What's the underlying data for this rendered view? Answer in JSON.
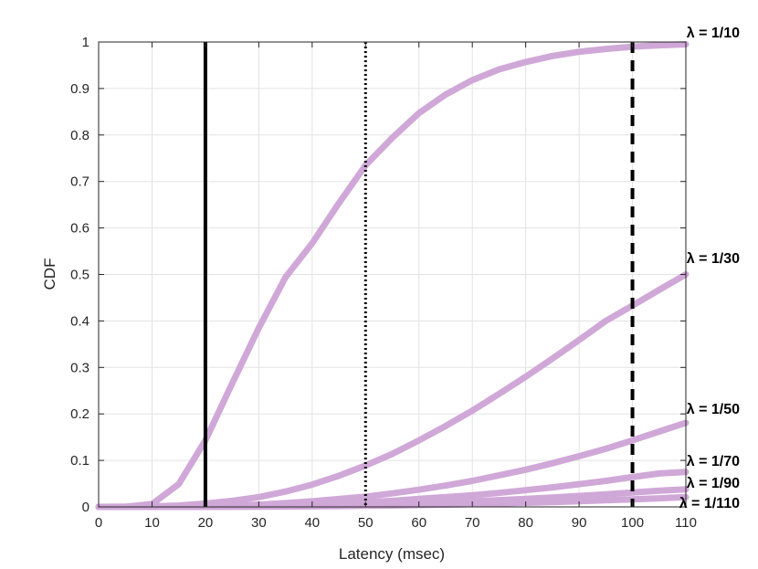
{
  "chart_data": {
    "type": "line",
    "xlabel": "Latency (msec)",
    "ylabel": "CDF",
    "xlim": [
      0,
      110
    ],
    "ylim": [
      0,
      1
    ],
    "grid": true,
    "x_ticks": [
      "0",
      "10",
      "20",
      "30",
      "40",
      "50",
      "60",
      "70",
      "80",
      "90",
      "100",
      "110"
    ],
    "y_ticks": [
      "0",
      "0.1",
      "0.2",
      "0.3",
      "0.4",
      "0.5",
      "0.6",
      "0.7",
      "0.8",
      "0.9",
      "1"
    ],
    "series_color": "#d0a8d8",
    "x": [
      0,
      5,
      10,
      15,
      20,
      25,
      30,
      35,
      40,
      45,
      50,
      55,
      60,
      65,
      70,
      75,
      80,
      85,
      90,
      95,
      100,
      105,
      110
    ],
    "series": [
      {
        "name": "λ = 1/10",
        "values": [
          0,
          0.0002,
          0.006,
          0.049,
          0.143,
          0.265,
          0.385,
          0.494,
          0.567,
          0.653,
          0.735,
          0.794,
          0.847,
          0.887,
          0.918,
          0.941,
          0.957,
          0.97,
          0.979,
          0.985,
          0.99,
          0.993,
          0.995
        ]
      },
      {
        "name": "λ = 1/30",
        "values": [
          0,
          0.0001,
          0.001,
          0.003,
          0.007,
          0.013,
          0.021,
          0.033,
          0.048,
          0.067,
          0.089,
          0.114,
          0.143,
          0.174,
          0.207,
          0.243,
          0.28,
          0.319,
          0.359,
          0.4,
          0.433,
          0.467,
          0.5
        ]
      },
      {
        "name": "λ = 1/50",
        "values": [
          0,
          0,
          0.0002,
          0.001,
          0.002,
          0.003,
          0.005,
          0.008,
          0.012,
          0.017,
          0.022,
          0.029,
          0.037,
          0.046,
          0.056,
          0.068,
          0.08,
          0.094,
          0.109,
          0.125,
          0.143,
          0.162,
          0.181
        ]
      },
      {
        "name": "λ = 1/70",
        "values": [
          0,
          0,
          0.0001,
          0.0003,
          0.0008,
          0.0015,
          0.0025,
          0.004,
          0.0055,
          0.0075,
          0.01,
          0.013,
          0.017,
          0.021,
          0.025,
          0.03,
          0.036,
          0.042,
          0.049,
          0.056,
          0.064,
          0.072,
          0.075
        ]
      },
      {
        "name": "λ = 1/90",
        "values": [
          0,
          0,
          0,
          0.0001,
          0.0003,
          0.0006,
          0.001,
          0.0016,
          0.0024,
          0.0034,
          0.0046,
          0.006,
          0.0078,
          0.0098,
          0.012,
          0.0145,
          0.0172,
          0.0202,
          0.0235,
          0.027,
          0.031,
          0.035,
          0.038
        ]
      },
      {
        "name": "λ = 1/110",
        "values": [
          0,
          0,
          0,
          0.0001,
          0.0002,
          0.0003,
          0.0005,
          0.0008,
          0.0012,
          0.0017,
          0.0023,
          0.003,
          0.0039,
          0.0049,
          0.006,
          0.0073,
          0.0088,
          0.0104,
          0.0122,
          0.0141,
          0.0162,
          0.0185,
          0.021
        ]
      }
    ],
    "curve_labels": [
      "λ = 1/10",
      "λ = 1/30",
      "λ = 1/50",
      "λ = 1/70",
      "λ = 1/90",
      "λ = 1/110"
    ],
    "vertical_lines": [
      {
        "x": 20,
        "style": "solid"
      },
      {
        "x": 50,
        "style": "dotted"
      },
      {
        "x": 100,
        "style": "dashed"
      }
    ]
  }
}
